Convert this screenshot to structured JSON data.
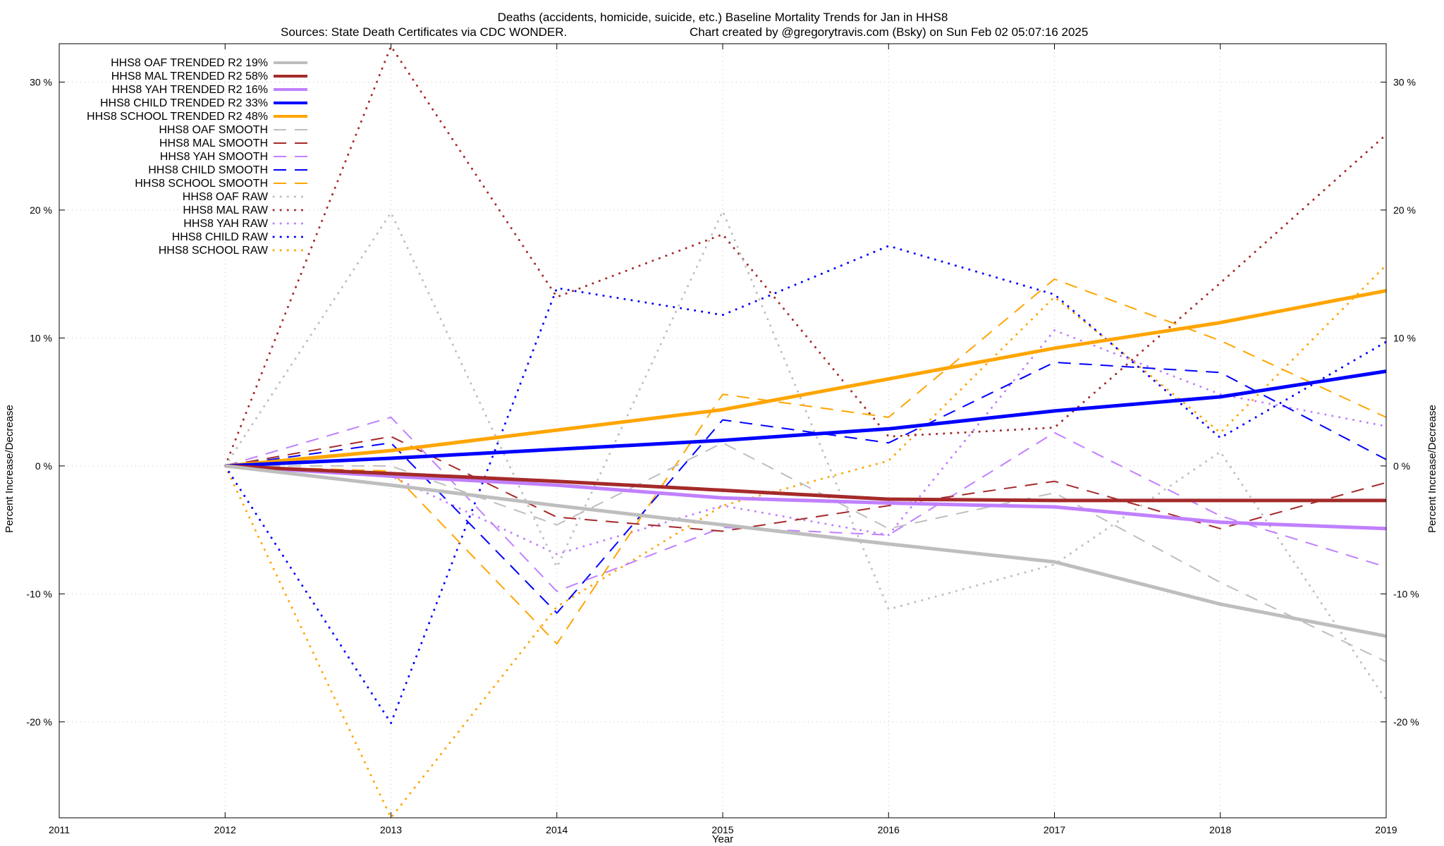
{
  "chart_data": {
    "type": "line",
    "title": "Deaths (accidents, homicide, suicide, etc.)  Baseline Mortality Trends for Jan in HHS8",
    "subtitle_left": "Sources: State Death Certificates via CDC WONDER.",
    "subtitle_right": "Chart created by @gregorytravis.com (Bsky) on Sun Feb 02 05:07:16 2025",
    "xlabel": "Year",
    "ylabel_left": "Percent Increase/Decrease",
    "ylabel_right": "Percent Increase/Decrease",
    "xlim": [
      2011,
      2019
    ],
    "ylim": [
      -27.5,
      33
    ],
    "x_ticks": [
      "2011",
      "2012",
      "2013",
      "2014",
      "2015",
      "2016",
      "2017",
      "2018",
      "2019"
    ],
    "y_tick_values": [
      -20,
      -10,
      0,
      10,
      20,
      30
    ],
    "y_ticks": [
      "-20 %",
      "-10 %",
      "0 %",
      "10 %",
      "20 %",
      "30 %"
    ],
    "grid": true,
    "legend_position": "top-left",
    "series": [
      {
        "name": "HHS8 OAF TRENDED R2  19%",
        "style": "solid",
        "color": "#bebebe",
        "x": [
          2012,
          2013,
          2014,
          2015,
          2016,
          2017,
          2018,
          2019
        ],
        "values": [
          0,
          -1.5,
          -3.1,
          -4.6,
          -6.1,
          -7.5,
          -10.8,
          -13.3
        ]
      },
      {
        "name": "HHS8 MAL TRENDED R2  58%",
        "style": "solid",
        "color": "#a52a2a",
        "x": [
          2012,
          2013,
          2014,
          2015,
          2016,
          2017,
          2018,
          2019
        ],
        "values": [
          0,
          -0.6,
          -1.2,
          -1.9,
          -2.6,
          -2.7,
          -2.7,
          -2.7
        ]
      },
      {
        "name": "HHS8 YAH TRENDED R2  16%",
        "style": "solid",
        "color": "#c080ff",
        "x": [
          2012,
          2013,
          2014,
          2015,
          2016,
          2017,
          2018,
          2019
        ],
        "values": [
          0,
          -0.8,
          -1.5,
          -2.5,
          -2.9,
          -3.2,
          -4.4,
          -4.9
        ]
      },
      {
        "name": "HHS8 CHILD TRENDED R2  33%",
        "style": "solid",
        "color": "#0000ff",
        "x": [
          2012,
          2013,
          2014,
          2015,
          2016,
          2017,
          2018,
          2019
        ],
        "values": [
          0,
          0.6,
          1.3,
          2.0,
          2.9,
          4.3,
          5.4,
          7.4
        ]
      },
      {
        "name": "HHS8 SCHOOL TRENDED R2  48%",
        "style": "solid",
        "color": "#ffa500",
        "x": [
          2012,
          2013,
          2014,
          2015,
          2016,
          2017,
          2018,
          2019
        ],
        "values": [
          0,
          1.2,
          2.8,
          4.4,
          6.8,
          9.2,
          11.2,
          13.7
        ]
      },
      {
        "name": "HHS8 OAF SMOOTH",
        "style": "dashed",
        "color": "#bebebe",
        "x": [
          2012,
          2013,
          2014,
          2015,
          2016,
          2017,
          2018,
          2019
        ],
        "values": [
          0,
          0,
          -4.6,
          1.8,
          -4.9,
          -2.1,
          -9.1,
          -15.3
        ]
      },
      {
        "name": "HHS8 MAL SMOOTH",
        "style": "dashed",
        "color": "#a52a2a",
        "x": [
          2012,
          2013,
          2014,
          2015,
          2016,
          2017,
          2018,
          2019
        ],
        "values": [
          0,
          2.3,
          -4.0,
          -5.1,
          -3.1,
          -1.2,
          -4.9,
          -1.3
        ]
      },
      {
        "name": "HHS8 YAH SMOOTH",
        "style": "dashed",
        "color": "#c080ff",
        "x": [
          2012,
          2013,
          2014,
          2015,
          2016,
          2017,
          2018,
          2019
        ],
        "values": [
          0,
          3.8,
          -9.8,
          -4.8,
          -5.4,
          2.6,
          -3.9,
          -7.9
        ]
      },
      {
        "name": "HHS8 CHILD SMOOTH",
        "style": "dashed",
        "color": "#0000ff",
        "x": [
          2012,
          2013,
          2014,
          2015,
          2016,
          2017,
          2018,
          2019
        ],
        "values": [
          0,
          1.8,
          -11.5,
          3.6,
          1.8,
          8.1,
          7.3,
          0.5
        ]
      },
      {
        "name": "HHS8 SCHOOL SMOOTH",
        "style": "dashed",
        "color": "#ffa500",
        "x": [
          2012,
          2013,
          2014,
          2015,
          2016,
          2017,
          2018,
          2019
        ],
        "values": [
          0,
          -0.4,
          -13.9,
          5.6,
          3.8,
          14.6,
          9.8,
          3.8
        ]
      },
      {
        "name": "HHS8 OAF RAW",
        "style": "dotted",
        "color": "#bebebe",
        "x": [
          2012,
          2013,
          2014,
          2015,
          2016,
          2017,
          2018,
          2019
        ],
        "values": [
          0,
          19.8,
          -7.9,
          19.9,
          -11.2,
          -7.7,
          1.1,
          -18.3
        ]
      },
      {
        "name": "HHS8 MAL RAW",
        "style": "dotted",
        "color": "#a52a2a",
        "x": [
          2012,
          2013,
          2014,
          2015,
          2016,
          2017,
          2018,
          2019
        ],
        "values": [
          0,
          32.8,
          13.2,
          18.1,
          2.3,
          3.0,
          14.3,
          25.9
        ]
      },
      {
        "name": "HHS8 YAH RAW",
        "style": "dotted",
        "color": "#c080ff",
        "x": [
          2012,
          2013,
          2014,
          2015,
          2016,
          2017,
          2018,
          2019
        ],
        "values": [
          0,
          -0.8,
          -6.9,
          -3.1,
          -5.4,
          10.6,
          5.6,
          3.1
        ]
      },
      {
        "name": "HHS8 CHILD RAW",
        "style": "dotted",
        "color": "#0000ff",
        "x": [
          2012,
          2013,
          2014,
          2015,
          2016,
          2017,
          2018,
          2019
        ],
        "values": [
          0,
          -20.1,
          13.9,
          11.8,
          17.2,
          13.4,
          2.2,
          9.7
        ]
      },
      {
        "name": "HHS8 SCHOOL RAW",
        "style": "dotted",
        "color": "#ffa500",
        "x": [
          2012,
          2013,
          2014,
          2015,
          2016,
          2017,
          2018,
          2019
        ],
        "values": [
          0,
          -27.5,
          -11.0,
          -3.1,
          0.4,
          13.2,
          2.6,
          15.7
        ]
      }
    ]
  }
}
